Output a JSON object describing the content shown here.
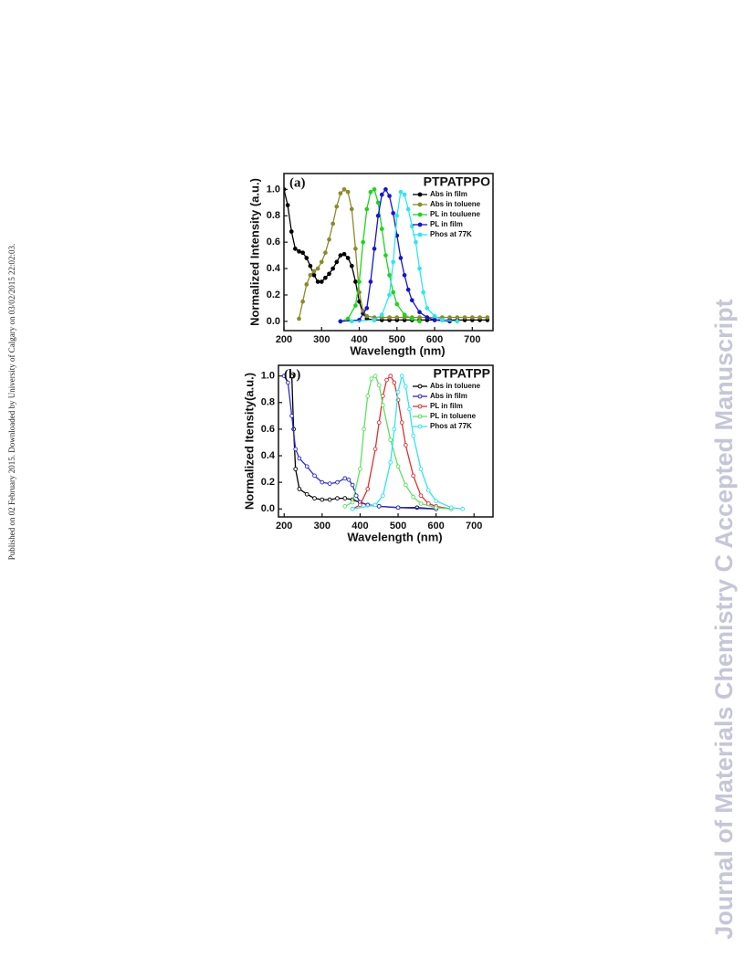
{
  "side_note": "Published on 02 February 2015. Downloaded by University of Calgary on 03/02/2015 22:02:03.",
  "watermark": "Journal of Materials Chemistry C Accepted Manuscript",
  "chart_data": [
    {
      "type": "line",
      "panel_label": "(a)",
      "title": "PTPATPPO",
      "xlabel": "Wavelength (nm)",
      "ylabel": "Normalized Intensity (a.u.)",
      "xlim": [
        200,
        755
      ],
      "ylim": [
        -0.07,
        1.12
      ],
      "xticks": [
        200,
        300,
        400,
        500,
        600,
        700
      ],
      "yticks": [
        {
          "value": 0,
          "label": "0.0"
        },
        0.2,
        0.4,
        0.6,
        0.8,
        {
          "value": 1,
          "label": "1.0"
        }
      ],
      "legend": "upper right",
      "marker": "filled",
      "series": [
        {
          "name": "Abs in film",
          "color": "#000000",
          "x": [
            200,
            210,
            220,
            230,
            240,
            250,
            260,
            270,
            280,
            290,
            300,
            310,
            320,
            330,
            340,
            350,
            360,
            370,
            380,
            390,
            400,
            410,
            420,
            440,
            460,
            480,
            500,
            520,
            540,
            560,
            580,
            600,
            620,
            640,
            660,
            680,
            700,
            720,
            740
          ],
          "values": [
            1.0,
            0.88,
            0.68,
            0.55,
            0.53,
            0.52,
            0.48,
            0.42,
            0.35,
            0.3,
            0.3,
            0.33,
            0.36,
            0.4,
            0.45,
            0.5,
            0.51,
            0.48,
            0.42,
            0.3,
            0.15,
            0.06,
            0.02,
            0.01,
            0.01,
            0.01,
            0.01,
            0.01,
            0.01,
            0.01,
            0.01,
            0.01,
            0.01,
            0.01,
            0.01,
            0.01,
            0.01,
            0.01,
            0.01
          ]
        },
        {
          "name": "Abs in toluene",
          "color": "#8b8b2a",
          "x": [
            240,
            250,
            260,
            270,
            280,
            290,
            300,
            310,
            320,
            330,
            340,
            350,
            360,
            370,
            380,
            390,
            400,
            410,
            420,
            440,
            460,
            480,
            500,
            520,
            540,
            560,
            580,
            600,
            620,
            640,
            660,
            680,
            700,
            720,
            740
          ],
          "values": [
            0.02,
            0.15,
            0.28,
            0.35,
            0.38,
            0.4,
            0.45,
            0.52,
            0.62,
            0.74,
            0.87,
            0.97,
            1.0,
            0.98,
            0.85,
            0.55,
            0.22,
            0.08,
            0.04,
            0.03,
            0.03,
            0.03,
            0.03,
            0.03,
            0.03,
            0.03,
            0.03,
            0.03,
            0.03,
            0.03,
            0.03,
            0.03,
            0.03,
            0.03,
            0.03
          ]
        },
        {
          "name": "PL in touluene",
          "color": "#1fd41f",
          "x": [
            350,
            370,
            390,
            400,
            410,
            420,
            430,
            440,
            450,
            460,
            470,
            480,
            490,
            500,
            520,
            540,
            560
          ],
          "values": [
            0,
            0.02,
            0.12,
            0.3,
            0.6,
            0.85,
            0.98,
            1.0,
            0.9,
            0.7,
            0.5,
            0.35,
            0.22,
            0.13,
            0.05,
            0.02,
            0
          ]
        },
        {
          "name": "PL in film",
          "color": "#1515d8",
          "x": [
            350,
            400,
            420,
            430,
            440,
            450,
            460,
            470,
            480,
            490,
            500,
            510,
            520,
            530,
            540,
            560,
            580,
            600,
            640
          ],
          "values": [
            0,
            0.01,
            0.1,
            0.3,
            0.55,
            0.8,
            0.96,
            1.0,
            0.95,
            0.82,
            0.65,
            0.48,
            0.35,
            0.24,
            0.16,
            0.07,
            0.03,
            0.01,
            0
          ]
        },
        {
          "name": "Phos at 77K",
          "color": "#2ee6f0",
          "x": [
            380,
            440,
            460,
            480,
            490,
            500,
            510,
            520,
            530,
            540,
            550,
            560,
            570,
            580,
            600,
            620,
            660
          ],
          "values": [
            0,
            0.01,
            0.05,
            0.2,
            0.45,
            0.8,
            0.98,
            0.96,
            0.85,
            0.72,
            0.6,
            0.4,
            0.22,
            0.1,
            0.04,
            0.01,
            0
          ]
        }
      ]
    },
    {
      "type": "line",
      "panel_label": "(b)",
      "title": "PTPATPP",
      "xlabel": "Wavelength (nm)",
      "ylabel": "Normalized Itensity(a.u.)",
      "xlim": [
        185,
        750
      ],
      "ylim": [
        -0.06,
        1.08
      ],
      "xticks": [
        200,
        300,
        400,
        500,
        600,
        700
      ],
      "yticks": [
        {
          "value": 0,
          "label": "0.0"
        },
        0.2,
        0.4,
        0.6,
        0.8,
        {
          "value": 1,
          "label": "1.0"
        }
      ],
      "legend": "upper right",
      "marker": "open",
      "series": [
        {
          "name": "Abs in toluene",
          "color": "#000000",
          "x": [
            220,
            225,
            230,
            240,
            260,
            280,
            300,
            320,
            340,
            360,
            380,
            400,
            420,
            450,
            500,
            550,
            600
          ],
          "values": [
            1.0,
            0.6,
            0.3,
            0.15,
            0.11,
            0.08,
            0.07,
            0.07,
            0.08,
            0.08,
            0.07,
            0.05,
            0.03,
            0.02,
            0.01,
            0.01,
            0
          ]
        },
        {
          "name": "Abs in film",
          "color": "#2a2ad0",
          "x": [
            200,
            210,
            220,
            230,
            240,
            260,
            280,
            300,
            320,
            340,
            360,
            370,
            380,
            390,
            400,
            420,
            450,
            500,
            600
          ],
          "values": [
            1.0,
            0.95,
            0.7,
            0.45,
            0.38,
            0.32,
            0.25,
            0.2,
            0.19,
            0.2,
            0.23,
            0.22,
            0.18,
            0.1,
            0.05,
            0.03,
            0.02,
            0.01,
            0
          ]
        },
        {
          "name": "PL in  film",
          "color": "#e03030",
          "x": [
            380,
            400,
            420,
            440,
            450,
            460,
            470,
            480,
            490,
            500,
            510,
            520,
            540,
            560,
            580,
            600,
            640
          ],
          "values": [
            0,
            0.03,
            0.15,
            0.45,
            0.65,
            0.85,
            0.97,
            1.0,
            0.95,
            0.82,
            0.65,
            0.48,
            0.25,
            0.1,
            0.04,
            0.02,
            0
          ]
        },
        {
          "name": "PL in toluene",
          "color": "#5fe05f",
          "x": [
            360,
            380,
            400,
            410,
            420,
            430,
            440,
            450,
            460,
            480,
            500,
            520,
            540,
            560,
            600,
            640
          ],
          "values": [
            0.02,
            0.05,
            0.3,
            0.6,
            0.85,
            0.98,
            1.0,
            0.93,
            0.78,
            0.52,
            0.32,
            0.18,
            0.09,
            0.04,
            0.01,
            0
          ]
        },
        {
          "name": "Phos at 77K",
          "color": "#2ee6f0",
          "x": [
            380,
            440,
            460,
            480,
            490,
            500,
            510,
            520,
            530,
            540,
            560,
            580,
            600,
            640,
            670
          ],
          "values": [
            0,
            0.03,
            0.1,
            0.35,
            0.6,
            0.88,
            1.0,
            0.92,
            0.75,
            0.55,
            0.3,
            0.14,
            0.06,
            0.01,
            0
          ]
        }
      ]
    }
  ]
}
